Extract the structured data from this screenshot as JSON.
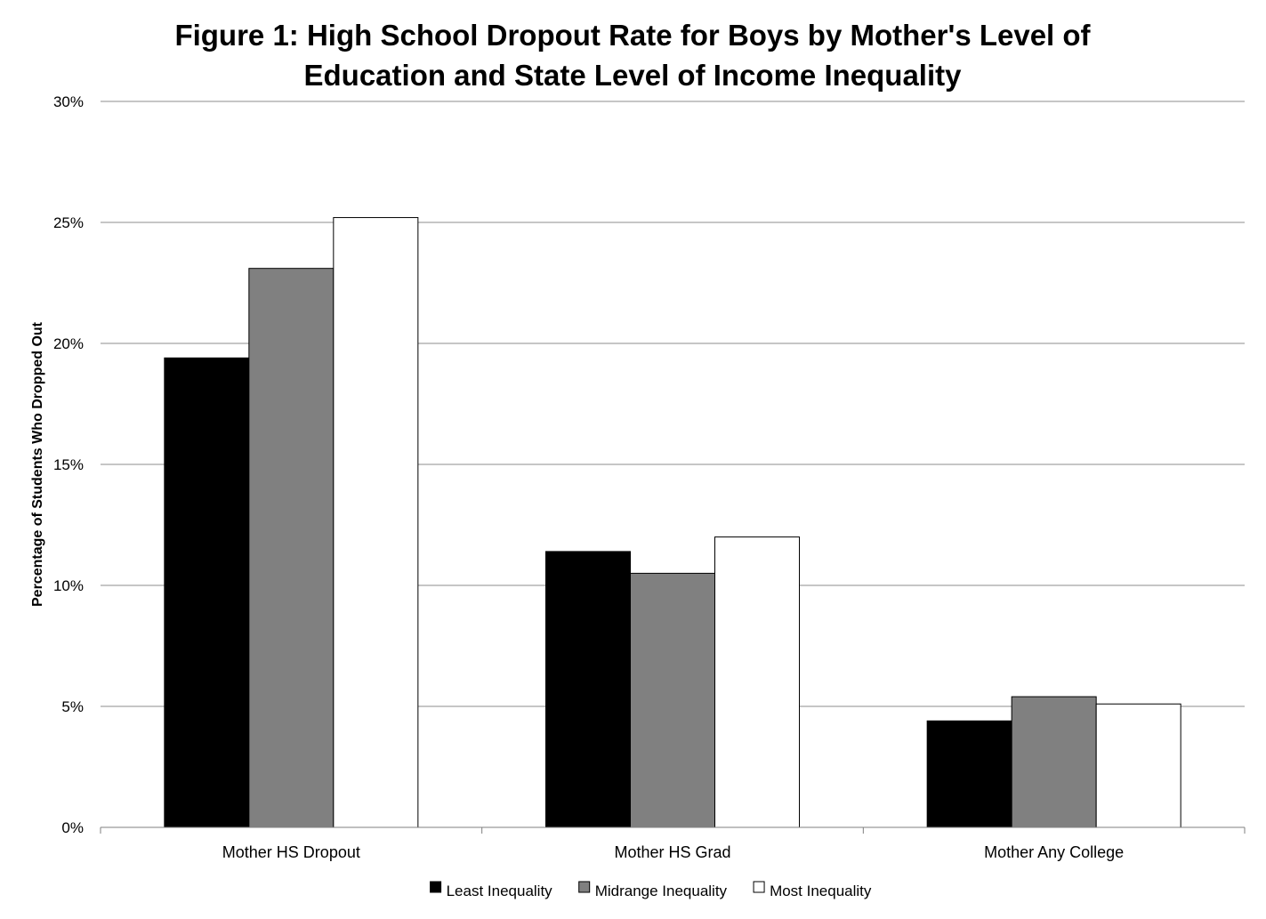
{
  "chart_data": {
    "type": "bar",
    "title_lines": [
      "Figure 1: High School Dropout Rate for Boys by Mother's Level of",
      "Education and State Level of Income Inequality"
    ],
    "xlabel": "",
    "ylabel": "Percentage of Students Who Dropped Out",
    "ylim": [
      0,
      30
    ],
    "yticks": [
      0,
      5,
      10,
      15,
      20,
      25,
      30
    ],
    "ytick_labels": [
      "0%",
      "5%",
      "10%",
      "15%",
      "20%",
      "25%",
      "30%"
    ],
    "categories": [
      "Mother HS Dropout",
      "Mother HS Grad",
      "Mother Any College"
    ],
    "series": [
      {
        "name": "Least Inequality",
        "color": "#000000",
        "values": [
          19.4,
          11.4,
          4.4
        ]
      },
      {
        "name": "Midrange Inequality",
        "color": "#808080",
        "values": [
          23.1,
          10.5,
          5.4
        ]
      },
      {
        "name": "Most Inequality",
        "color": "#ffffff",
        "values": [
          25.2,
          12.0,
          5.1
        ]
      }
    ],
    "grid": true,
    "legend_position": "bottom"
  }
}
